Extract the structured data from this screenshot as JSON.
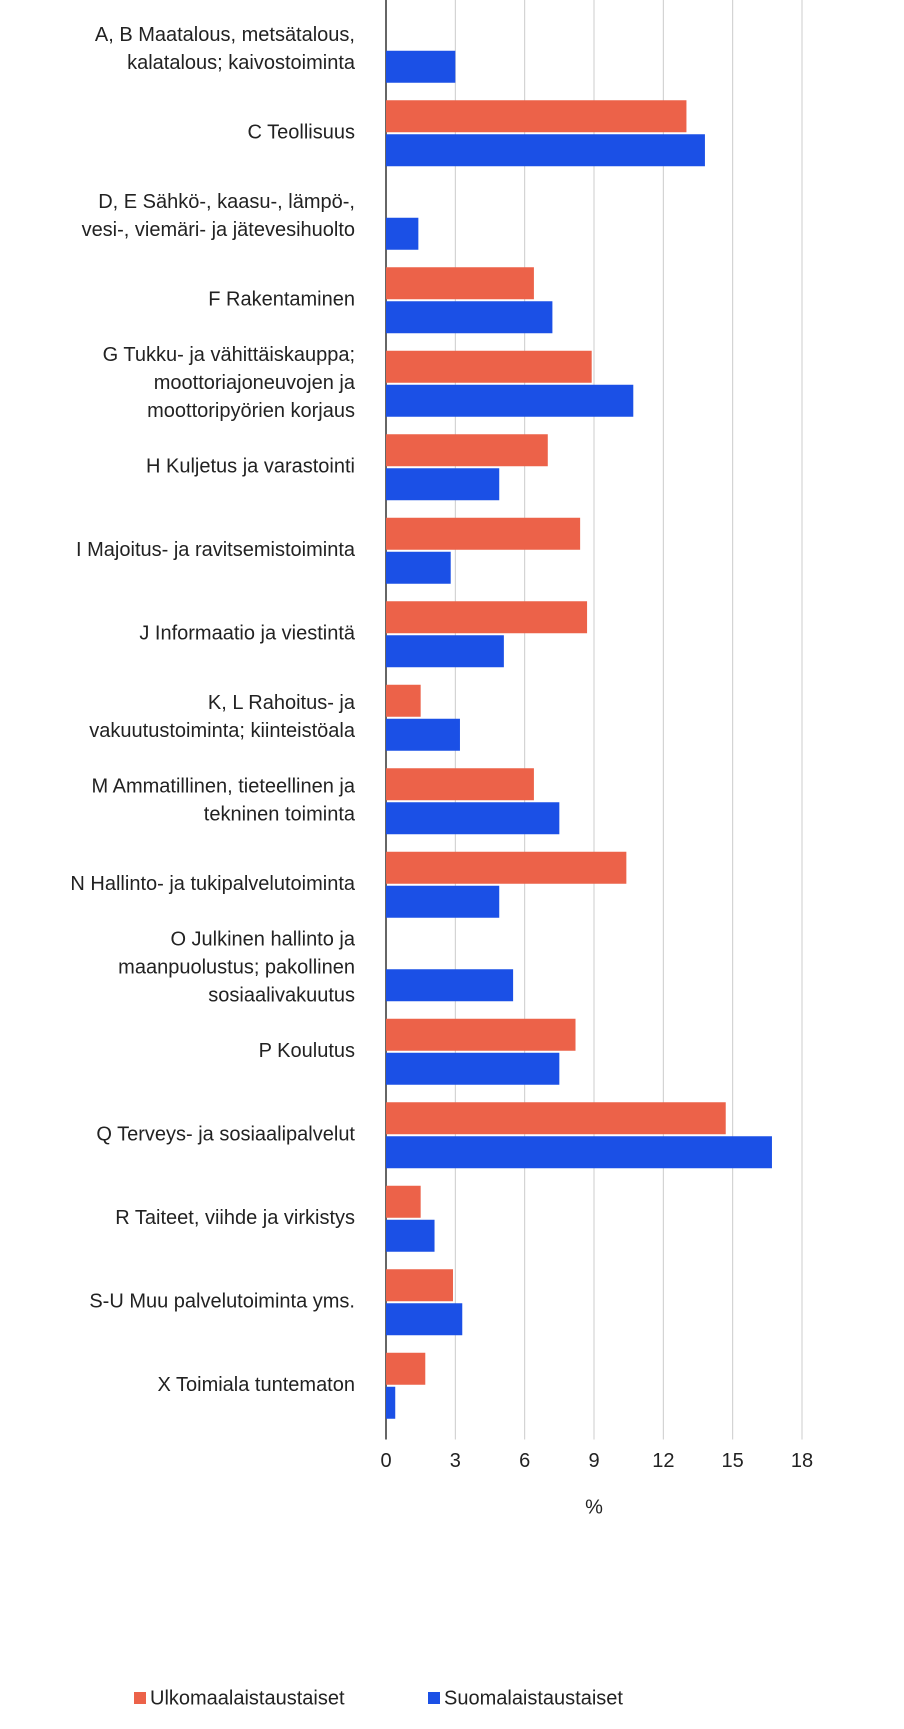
{
  "chart_data": {
    "type": "barh",
    "categories": [
      [
        "A, B Maatalous, metsätalous,",
        "kalatalous; kaivostoiminta"
      ],
      [
        "C Teollisuus"
      ],
      [
        "D, E Sähkö-, kaasu-, lämpö-,",
        "vesi-, viemäri- ja jätevesihuolto"
      ],
      [
        "F Rakentaminen"
      ],
      [
        "G Tukku- ja vähittäiskauppa;",
        "moottoriajoneuvojen ja",
        "moottoripyörien korjaus"
      ],
      [
        "H Kuljetus ja varastointi"
      ],
      [
        "I Majoitus- ja ravitsemistoiminta"
      ],
      [
        "J Informaatio ja viestintä"
      ],
      [
        "K, L Rahoitus- ja",
        "vakuutustoiminta; kiinteistöala"
      ],
      [
        "M Ammatillinen, tieteellinen ja",
        "tekninen toiminta"
      ],
      [
        "N Hallinto- ja tukipalvelutoiminta"
      ],
      [
        "O Julkinen hallinto ja",
        "maanpuolustus; pakollinen",
        "sosiaalivakuutus"
      ],
      [
        "P Koulutus"
      ],
      [
        "Q Terveys- ja sosiaalipalvelut"
      ],
      [
        "R Taiteet, viihde ja virkistys"
      ],
      [
        "S-U Muu palvelutoiminta yms."
      ],
      [
        "X Toimiala tuntematon"
      ]
    ],
    "series": [
      {
        "name": "Ulkomaalaistaustaiset",
        "color": "#ec6249",
        "values": [
          null,
          13.0,
          null,
          6.4,
          8.9,
          7.0,
          8.4,
          8.7,
          1.5,
          6.4,
          10.4,
          null,
          8.2,
          14.7,
          1.5,
          2.9,
          1.7
        ]
      },
      {
        "name": "Suomalaistaustaiset",
        "color": "#1b50e6",
        "values": [
          3.0,
          13.8,
          1.4,
          7.2,
          10.7,
          4.9,
          2.8,
          5.1,
          3.2,
          7.5,
          4.9,
          5.5,
          7.5,
          16.7,
          2.1,
          3.3,
          0.4
        ]
      }
    ],
    "xlabel": "%",
    "xlim": [
      0,
      18
    ],
    "xticks": [
      0,
      3,
      6,
      9,
      12,
      15,
      18
    ],
    "grid": true,
    "legend": "bottom"
  }
}
